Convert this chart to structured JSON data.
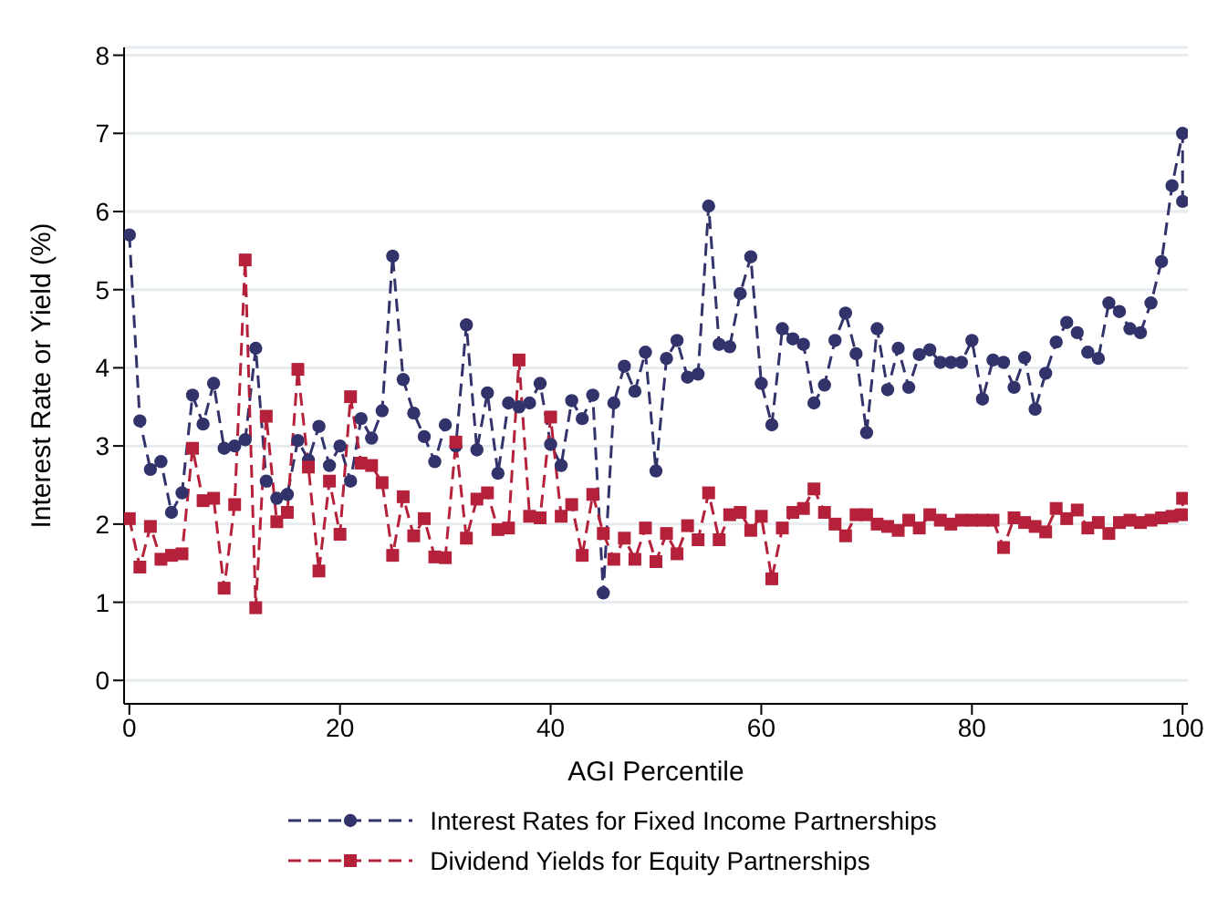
{
  "chart_data": {
    "type": "line",
    "xlabel": "AGI Percentile",
    "ylabel": "Interest Rate or Yield (%)",
    "x": [
      0,
      1,
      2,
      3,
      4,
      5,
      6,
      7,
      8,
      9,
      10,
      11,
      12,
      13,
      14,
      15,
      16,
      17,
      18,
      19,
      20,
      21,
      22,
      23,
      24,
      25,
      26,
      27,
      28,
      29,
      30,
      31,
      32,
      33,
      34,
      35,
      36,
      37,
      38,
      39,
      40,
      41,
      42,
      43,
      44,
      45,
      46,
      47,
      48,
      49,
      50,
      51,
      52,
      53,
      54,
      55,
      56,
      57,
      58,
      59,
      60,
      61,
      62,
      63,
      64,
      65,
      66,
      67,
      68,
      69,
      70,
      71,
      72,
      73,
      74,
      75,
      76,
      77,
      78,
      79,
      80,
      81,
      82,
      83,
      84,
      85,
      86,
      87,
      88,
      89,
      90,
      91,
      92,
      93,
      94,
      95,
      96,
      97,
      98,
      99,
      100,
      100
    ],
    "series": [
      {
        "name": "Interest Rates for Fixed Income Partnerships",
        "color": "#33336b",
        "marker": "circle",
        "values": [
          5.7,
          3.32,
          2.7,
          2.8,
          2.15,
          2.4,
          3.65,
          3.28,
          3.8,
          2.97,
          3.0,
          3.08,
          4.25,
          2.55,
          2.33,
          2.38,
          3.07,
          2.82,
          3.25,
          2.75,
          3.0,
          2.55,
          3.35,
          3.1,
          3.45,
          5.43,
          3.85,
          3.42,
          3.12,
          2.8,
          3.27,
          3.0,
          4.55,
          2.95,
          3.68,
          2.65,
          3.55,
          3.5,
          3.55,
          3.8,
          3.02,
          2.75,
          3.58,
          3.35,
          3.65,
          1.12,
          3.55,
          4.02,
          3.7,
          4.2,
          2.68,
          4.12,
          4.35,
          3.88,
          3.92,
          6.07,
          4.3,
          4.27,
          4.95,
          5.42,
          3.8,
          3.27,
          4.5,
          4.37,
          4.3,
          3.55,
          3.78,
          4.35,
          4.7,
          4.18,
          3.17,
          4.5,
          3.72,
          4.25,
          3.75,
          4.17,
          4.23,
          4.07,
          4.07,
          4.07,
          4.35,
          3.6,
          4.1,
          4.07,
          3.75,
          4.13,
          3.47,
          3.93,
          4.33,
          4.58,
          4.45,
          4.2,
          4.12,
          4.83,
          4.72,
          4.5,
          4.45,
          4.83,
          5.36,
          6.33,
          7.0,
          6.13
        ]
      },
      {
        "name": "Dividend Yields for Equity Partnerships",
        "color": "#b5213a",
        "marker": "square",
        "values": [
          2.07,
          1.45,
          1.97,
          1.55,
          1.6,
          1.62,
          2.97,
          2.3,
          2.33,
          1.18,
          2.25,
          5.38,
          0.93,
          3.38,
          2.03,
          2.15,
          3.98,
          2.73,
          1.4,
          2.55,
          1.87,
          3.63,
          2.78,
          2.75,
          2.53,
          1.6,
          2.35,
          1.85,
          2.07,
          1.58,
          1.57,
          3.05,
          1.82,
          2.32,
          2.4,
          1.93,
          1.95,
          4.1,
          2.1,
          2.08,
          3.37,
          2.1,
          2.25,
          1.6,
          2.38,
          1.88,
          1.55,
          1.82,
          1.55,
          1.95,
          1.52,
          1.88,
          1.62,
          1.98,
          1.8,
          2.4,
          1.8,
          2.12,
          2.15,
          1.92,
          2.1,
          1.3,
          1.95,
          2.15,
          2.2,
          2.45,
          2.15,
          2.0,
          1.85,
          2.12,
          2.12,
          2.0,
          1.97,
          1.92,
          2.05,
          1.95,
          2.12,
          2.05,
          2.0,
          2.05,
          2.05,
          2.05,
          2.05,
          1.7,
          2.08,
          2.02,
          1.97,
          1.9,
          2.2,
          2.07,
          2.18,
          1.95,
          2.02,
          1.88,
          2.02,
          2.05,
          2.02,
          2.05,
          2.08,
          2.1,
          2.33,
          2.12
        ]
      }
    ],
    "xlim": [
      -0.5,
      100.5
    ],
    "xticks": [
      0,
      20,
      40,
      60,
      80,
      100
    ],
    "ylim": [
      -0.3,
      8.1
    ],
    "yticks": [
      0,
      1,
      2,
      3,
      4,
      5,
      6,
      7,
      8
    ],
    "grid": "y",
    "legend": "bottom",
    "line_style": "dashed"
  }
}
